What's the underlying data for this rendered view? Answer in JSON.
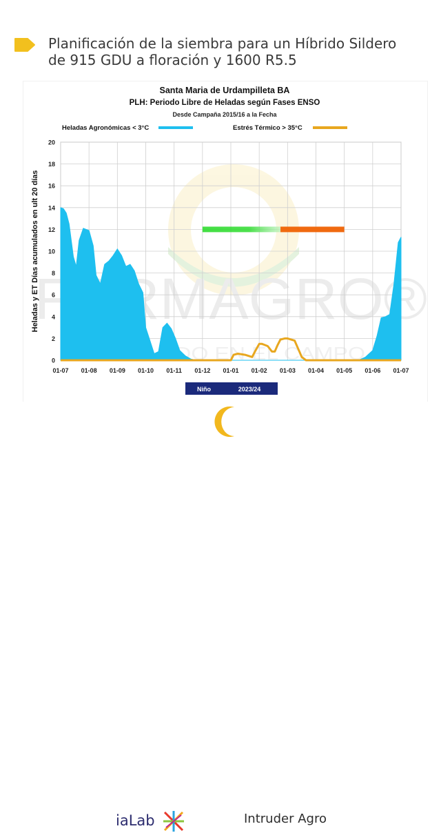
{
  "page": {
    "title_line1": "Planificación de la siembra para un Híbrido Sildero",
    "title_line2": "de 915 GDU a floración y 1600 R5.5",
    "accent_color": "#F2C01E"
  },
  "chart_data": {
    "type": "area",
    "title": "Santa Maria de Urdampilleta BA",
    "subtitle": "PLH: Periodo Libre de Heladas según Fases ENSO",
    "subtitle2": "Desde Campaña 2015/16 a la Fecha",
    "ylabel": "Heladas y ET  Días acumulados en ult 20 días",
    "xlabel": "",
    "ylim": [
      0,
      20
    ],
    "yticks": [
      "0",
      "2",
      "4",
      "6",
      "8",
      "10",
      "12",
      "14",
      "16",
      "18",
      "20"
    ],
    "xticks": [
      "01-07",
      "01-08",
      "01-09",
      "01-10",
      "01-11",
      "01-12",
      "01-01",
      "01-02",
      "01-03",
      "01-04",
      "01-05",
      "01-06",
      "01-07"
    ],
    "grid": true,
    "legend_position": "top",
    "phase_label": "Niño",
    "season_label": "2023/24",
    "watermark": "FORMAGRO®",
    "watermark_tagline": "DE TU LADO EN EL CAMPO",
    "series": [
      {
        "name": "Heladas Agronómicas  < 3°C",
        "color": "#1EBFEF",
        "x": [
          0,
          0.1,
          0.2,
          0.3,
          0.45,
          0.55,
          0.65,
          0.8,
          1.0,
          1.15,
          1.25,
          1.4,
          1.55,
          1.7,
          1.85,
          2.0,
          2.15,
          2.3,
          2.45,
          2.6,
          2.75,
          2.9,
          3.0,
          3.15,
          3.3,
          3.45,
          3.6,
          3.75,
          3.9,
          4.05,
          4.2,
          4.4,
          4.6,
          4.8,
          5.0,
          6.0,
          7.0,
          8.0,
          9.0,
          10.0,
          10.5,
          10.75,
          11.0,
          11.15,
          11.3,
          11.45,
          11.6,
          11.75,
          11.9,
          12.0
        ],
        "y": [
          14.0,
          13.9,
          13.5,
          12.5,
          9.5,
          8.6,
          11.0,
          12.1,
          11.9,
          10.5,
          7.8,
          7.0,
          8.8,
          9.1,
          9.6,
          10.2,
          9.6,
          8.6,
          8.8,
          8.2,
          7.0,
          6.2,
          3.0,
          1.8,
          0.6,
          0.8,
          3.0,
          3.4,
          2.9,
          2.0,
          0.9,
          0.4,
          0.1,
          0,
          0,
          0,
          0,
          0,
          0,
          0,
          0,
          0.3,
          0.9,
          2.2,
          3.9,
          4.0,
          4.2,
          7.0,
          10.8,
          11.3
        ]
      },
      {
        "name": "Estrés Térmico > 35°C",
        "color": "#E8A71F",
        "x": [
          0,
          6.0,
          6.1,
          6.25,
          6.5,
          6.75,
          6.85,
          7.0,
          7.1,
          7.3,
          7.45,
          7.55,
          7.65,
          7.75,
          7.9,
          8.0,
          8.25,
          8.4,
          8.5,
          8.65,
          9.0,
          12.0
        ],
        "y": [
          0,
          0,
          0.5,
          0.6,
          0.5,
          0.3,
          0.8,
          1.5,
          1.5,
          1.3,
          0.8,
          0.8,
          1.4,
          1.9,
          2.0,
          2.0,
          1.8,
          0.9,
          0.3,
          0,
          0,
          0
        ]
      }
    ],
    "planning_bar": {
      "y": 12,
      "green_start": 5.0,
      "green_end": 7.75,
      "orange_start": 7.75,
      "orange_end": 10.0,
      "green_color": "#2EDB2E",
      "orange_color": "#F06A10"
    },
    "footer_band_color": "#1B2A7B"
  },
  "footer": {
    "logo_left": "iaLab",
    "logo_right": "Intruder Agro"
  }
}
